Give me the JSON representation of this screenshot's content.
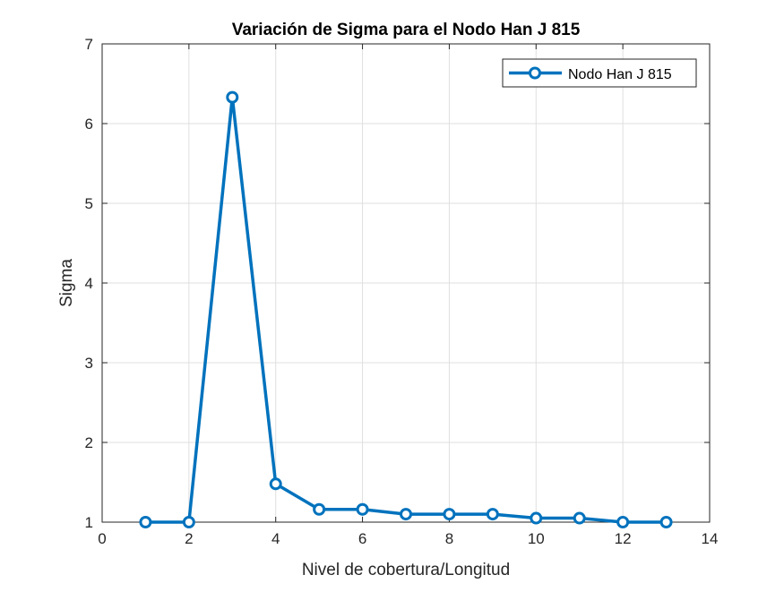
{
  "chart_data": {
    "type": "line",
    "title": "Variación de Sigma para el Nodo Han J 815",
    "xlabel": "Nivel de cobertura/Longitud",
    "ylabel": "Sigma",
    "xlim": [
      0,
      14
    ],
    "ylim": [
      1,
      7
    ],
    "xticks": [
      0,
      2,
      4,
      6,
      8,
      10,
      12,
      14
    ],
    "yticks": [
      1,
      2,
      3,
      4,
      5,
      6,
      7
    ],
    "grid": true,
    "legend_position": "top-right",
    "series": [
      {
        "name": "Nodo Han J 815",
        "color": "#0072bd",
        "marker": "circle",
        "x": [
          1,
          2,
          3,
          4,
          5,
          6,
          7,
          8,
          9,
          10,
          11,
          12,
          13
        ],
        "y": [
          1.0,
          1.0,
          6.33,
          1.48,
          1.16,
          1.16,
          1.1,
          1.1,
          1.1,
          1.05,
          1.05,
          1.0,
          1.0
        ]
      }
    ]
  }
}
